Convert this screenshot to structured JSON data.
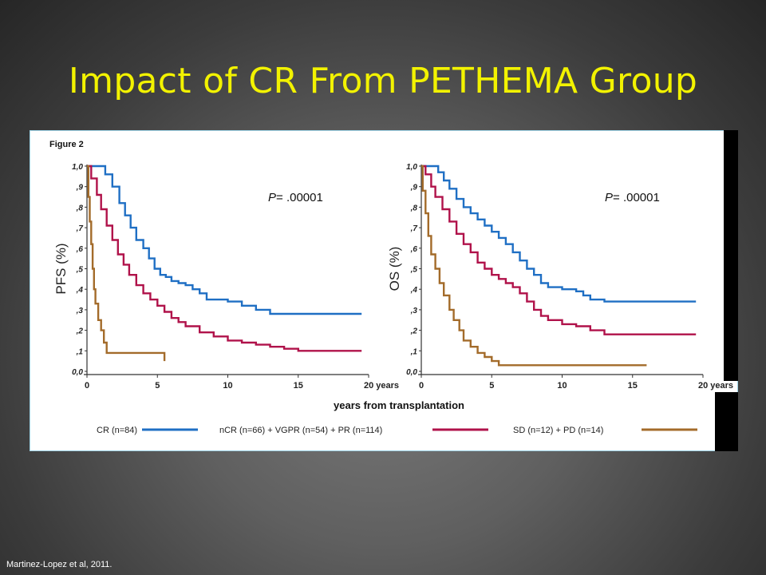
{
  "slide": {
    "title": "Impact of CR From PETHEMA Group",
    "citation": "Martinez-Lopez et al, 2011."
  },
  "figure": {
    "label": "Figure 2",
    "shared_xlabel": "years from transplantation",
    "legend": [
      {
        "label": "CR (n=84)",
        "color": "#1f6fc4"
      },
      {
        "label": "nCR (n=66) + VGPR (n=54) + PR (n=114)",
        "color": "#b0124a"
      },
      {
        "label": "SD (n=12) + PD (n=14)",
        "color": "#a36b2a"
      }
    ]
  },
  "colors": {
    "title": "#f2f200",
    "cr": "#1f6fc4",
    "ncr": "#b0124a",
    "sd": "#a36b2a"
  },
  "chart_data": [
    {
      "type": "line",
      "ylabel": "PFS (%)",
      "p_value": "P= .00001",
      "xlim": [
        0,
        20
      ],
      "ylim": [
        0,
        1
      ],
      "x_ticks": [
        "0",
        "5",
        "10",
        "15",
        "20 years"
      ],
      "y_ticks": [
        "0,0",
        ",1",
        ",2",
        ",3",
        ",4",
        ",5",
        ",6",
        ",7",
        ",8",
        ",9",
        "1,0"
      ],
      "series": [
        {
          "name": "CR (n=84)",
          "color": "#1f6fc4",
          "points": [
            [
              0,
              1.0
            ],
            [
              1.0,
              1.0
            ],
            [
              1.3,
              0.96
            ],
            [
              1.8,
              0.9
            ],
            [
              2.3,
              0.82
            ],
            [
              2.7,
              0.76
            ],
            [
              3.1,
              0.7
            ],
            [
              3.5,
              0.64
            ],
            [
              4.0,
              0.6
            ],
            [
              4.4,
              0.55
            ],
            [
              4.8,
              0.5
            ],
            [
              5.2,
              0.47
            ],
            [
              5.6,
              0.46
            ],
            [
              6.0,
              0.44
            ],
            [
              6.5,
              0.43
            ],
            [
              7.0,
              0.42
            ],
            [
              7.5,
              0.4
            ],
            [
              8.0,
              0.38
            ],
            [
              8.5,
              0.35
            ],
            [
              10.0,
              0.34
            ],
            [
              11.0,
              0.32
            ],
            [
              12.0,
              0.3
            ],
            [
              13.0,
              0.28
            ],
            [
              16.0,
              0.28
            ],
            [
              19.5,
              0.28
            ]
          ]
        },
        {
          "name": "nCR (n=66) + VGPR (n=54) + PR (n=114)",
          "color": "#b0124a",
          "points": [
            [
              0,
              1.0
            ],
            [
              0.3,
              0.94
            ],
            [
              0.7,
              0.86
            ],
            [
              1.0,
              0.79
            ],
            [
              1.4,
              0.71
            ],
            [
              1.8,
              0.64
            ],
            [
              2.2,
              0.57
            ],
            [
              2.6,
              0.52
            ],
            [
              3.0,
              0.47
            ],
            [
              3.5,
              0.42
            ],
            [
              4.0,
              0.38
            ],
            [
              4.5,
              0.35
            ],
            [
              5.0,
              0.32
            ],
            [
              5.5,
              0.29
            ],
            [
              6.0,
              0.26
            ],
            [
              6.5,
              0.24
            ],
            [
              7.0,
              0.22
            ],
            [
              8.0,
              0.19
            ],
            [
              9.0,
              0.17
            ],
            [
              10.0,
              0.15
            ],
            [
              11.0,
              0.14
            ],
            [
              12.0,
              0.13
            ],
            [
              13.0,
              0.12
            ],
            [
              14.0,
              0.11
            ],
            [
              15.0,
              0.1
            ],
            [
              19.5,
              0.1
            ]
          ]
        },
        {
          "name": "SD (n=12) + PD (n=14)",
          "color": "#a36b2a",
          "points": [
            [
              0,
              1.0
            ],
            [
              0.1,
              0.85
            ],
            [
              0.2,
              0.73
            ],
            [
              0.3,
              0.62
            ],
            [
              0.4,
              0.5
            ],
            [
              0.5,
              0.4
            ],
            [
              0.6,
              0.33
            ],
            [
              0.8,
              0.25
            ],
            [
              1.0,
              0.2
            ],
            [
              1.2,
              0.14
            ],
            [
              1.4,
              0.09
            ],
            [
              2.0,
              0.09
            ],
            [
              5.5,
              0.09
            ],
            [
              5.5,
              0.05
            ]
          ]
        }
      ]
    },
    {
      "type": "line",
      "ylabel": "OS (%)",
      "p_value": "P= .00001",
      "xlim": [
        0,
        20
      ],
      "ylim": [
        0,
        1
      ],
      "x_ticks": [
        "0",
        "5",
        "10",
        "15",
        "20 years"
      ],
      "y_ticks": [
        "0,0",
        ",1",
        ",2",
        ",3",
        ",4",
        ",5",
        ",6",
        ",7",
        ",8",
        ",9",
        "1,0"
      ],
      "series": [
        {
          "name": "CR (n=84)",
          "color": "#1f6fc4",
          "points": [
            [
              0,
              1.0
            ],
            [
              0.9,
              1.0
            ],
            [
              1.2,
              0.97
            ],
            [
              1.6,
              0.93
            ],
            [
              2.0,
              0.89
            ],
            [
              2.5,
              0.84
            ],
            [
              3.0,
              0.8
            ],
            [
              3.5,
              0.77
            ],
            [
              4.0,
              0.74
            ],
            [
              4.5,
              0.71
            ],
            [
              5.0,
              0.68
            ],
            [
              5.5,
              0.65
            ],
            [
              6.0,
              0.62
            ],
            [
              6.5,
              0.58
            ],
            [
              7.0,
              0.54
            ],
            [
              7.5,
              0.5
            ],
            [
              8.0,
              0.47
            ],
            [
              8.5,
              0.43
            ],
            [
              9.0,
              0.41
            ],
            [
              10.0,
              0.4
            ],
            [
              11.0,
              0.39
            ],
            [
              11.5,
              0.37
            ],
            [
              12.0,
              0.35
            ],
            [
              13.0,
              0.34
            ],
            [
              19.5,
              0.34
            ]
          ]
        },
        {
          "name": "nCR (n=66) + VGPR (n=54) + PR (n=114)",
          "color": "#b0124a",
          "points": [
            [
              0,
              1.0
            ],
            [
              0.3,
              0.96
            ],
            [
              0.7,
              0.9
            ],
            [
              1.0,
              0.85
            ],
            [
              1.5,
              0.79
            ],
            [
              2.0,
              0.73
            ],
            [
              2.5,
              0.67
            ],
            [
              3.0,
              0.62
            ],
            [
              3.5,
              0.58
            ],
            [
              4.0,
              0.53
            ],
            [
              4.5,
              0.5
            ],
            [
              5.0,
              0.47
            ],
            [
              5.5,
              0.45
            ],
            [
              6.0,
              0.43
            ],
            [
              6.5,
              0.41
            ],
            [
              7.0,
              0.38
            ],
            [
              7.5,
              0.34
            ],
            [
              8.0,
              0.3
            ],
            [
              8.5,
              0.27
            ],
            [
              9.0,
              0.25
            ],
            [
              10.0,
              0.23
            ],
            [
              11.0,
              0.22
            ],
            [
              12.0,
              0.2
            ],
            [
              13.0,
              0.18
            ],
            [
              19.5,
              0.18
            ]
          ]
        },
        {
          "name": "SD (n=12) + PD (n=14)",
          "color": "#a36b2a",
          "points": [
            [
              0,
              1.0
            ],
            [
              0.1,
              0.88
            ],
            [
              0.3,
              0.77
            ],
            [
              0.5,
              0.66
            ],
            [
              0.7,
              0.57
            ],
            [
              1.0,
              0.5
            ],
            [
              1.3,
              0.43
            ],
            [
              1.6,
              0.37
            ],
            [
              2.0,
              0.3
            ],
            [
              2.3,
              0.25
            ],
            [
              2.7,
              0.2
            ],
            [
              3.0,
              0.15
            ],
            [
              3.5,
              0.12
            ],
            [
              4.0,
              0.09
            ],
            [
              4.5,
              0.07
            ],
            [
              5.0,
              0.05
            ],
            [
              5.5,
              0.03
            ],
            [
              10.0,
              0.03
            ],
            [
              16.0,
              0.03
            ]
          ]
        }
      ]
    }
  ]
}
